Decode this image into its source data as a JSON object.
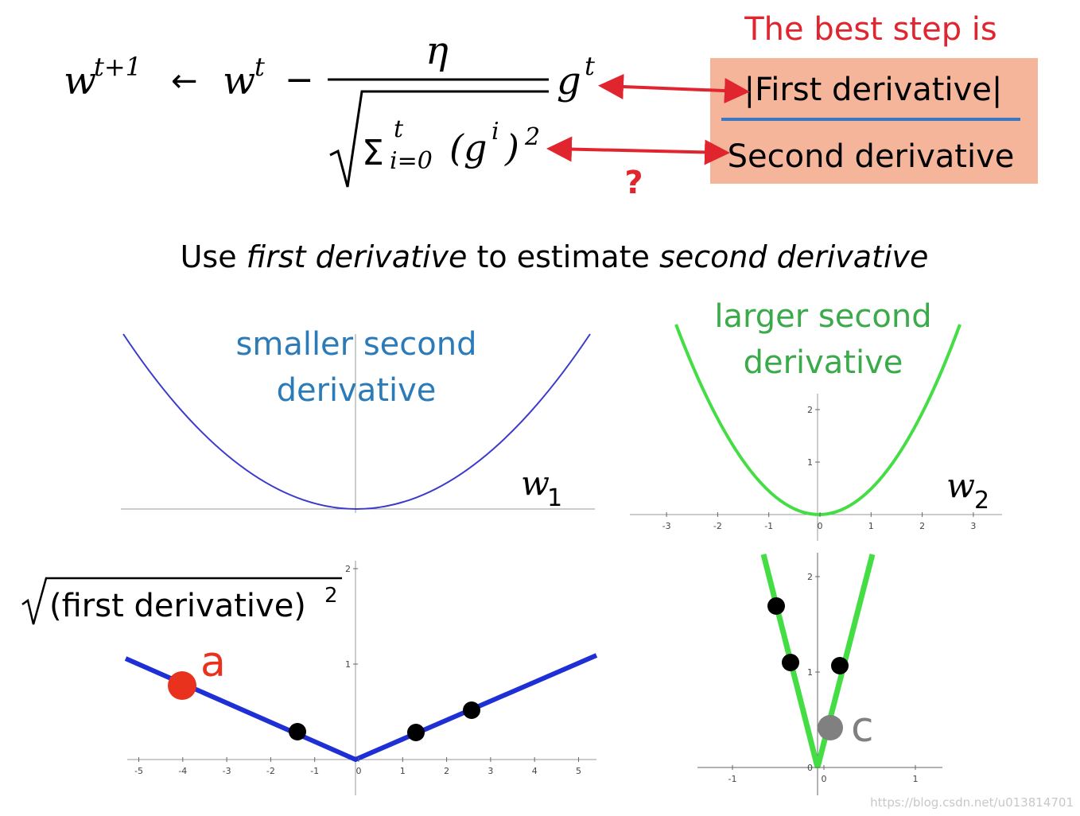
{
  "header": {
    "best_step": "The best step is",
    "first": "|First derivative|",
    "second": "Second derivative",
    "question": "?"
  },
  "formula": {
    "w1": "w",
    "w1_sup": "t+1",
    "arrow": "←",
    "w2": "w",
    "w2_sup": "t",
    "minus": "−",
    "eta": "η",
    "sigma": "Σ",
    "sigma_sup": "t",
    "sigma_sub": "i=0",
    "open": "(g",
    "g_sup": "i",
    "close": ")",
    "square": "2",
    "g": "g",
    "g2_sup": "t"
  },
  "subtitle": {
    "a": "Use ",
    "b": "first derivative",
    "c": " to estimate ",
    "d": "second derivative"
  },
  "plots": {
    "top_left": {
      "label_1": "smaller second",
      "label_2": "derivative",
      "var": "w",
      "sub": "1"
    },
    "top_right": {
      "label_1": "larger second",
      "label_2": "derivative",
      "var": "w",
      "sub": "2",
      "xticks": [
        -3,
        -2,
        -1,
        0,
        1,
        2,
        3
      ],
      "yticks": [
        1,
        2
      ]
    },
    "bottom_left": {
      "radicand": "(first derivative)",
      "power": "2",
      "point": "a",
      "xticks": [
        -5,
        -4,
        -3,
        -2,
        -1,
        0,
        1,
        2,
        3,
        4,
        5
      ],
      "yticks": [
        1,
        2
      ]
    },
    "bottom_right": {
      "point": "c",
      "xticks": [
        -1,
        0,
        1
      ],
      "yticks": [
        0,
        1,
        2
      ]
    }
  },
  "watermark": "https://blog.csdn.net/u013814701"
}
